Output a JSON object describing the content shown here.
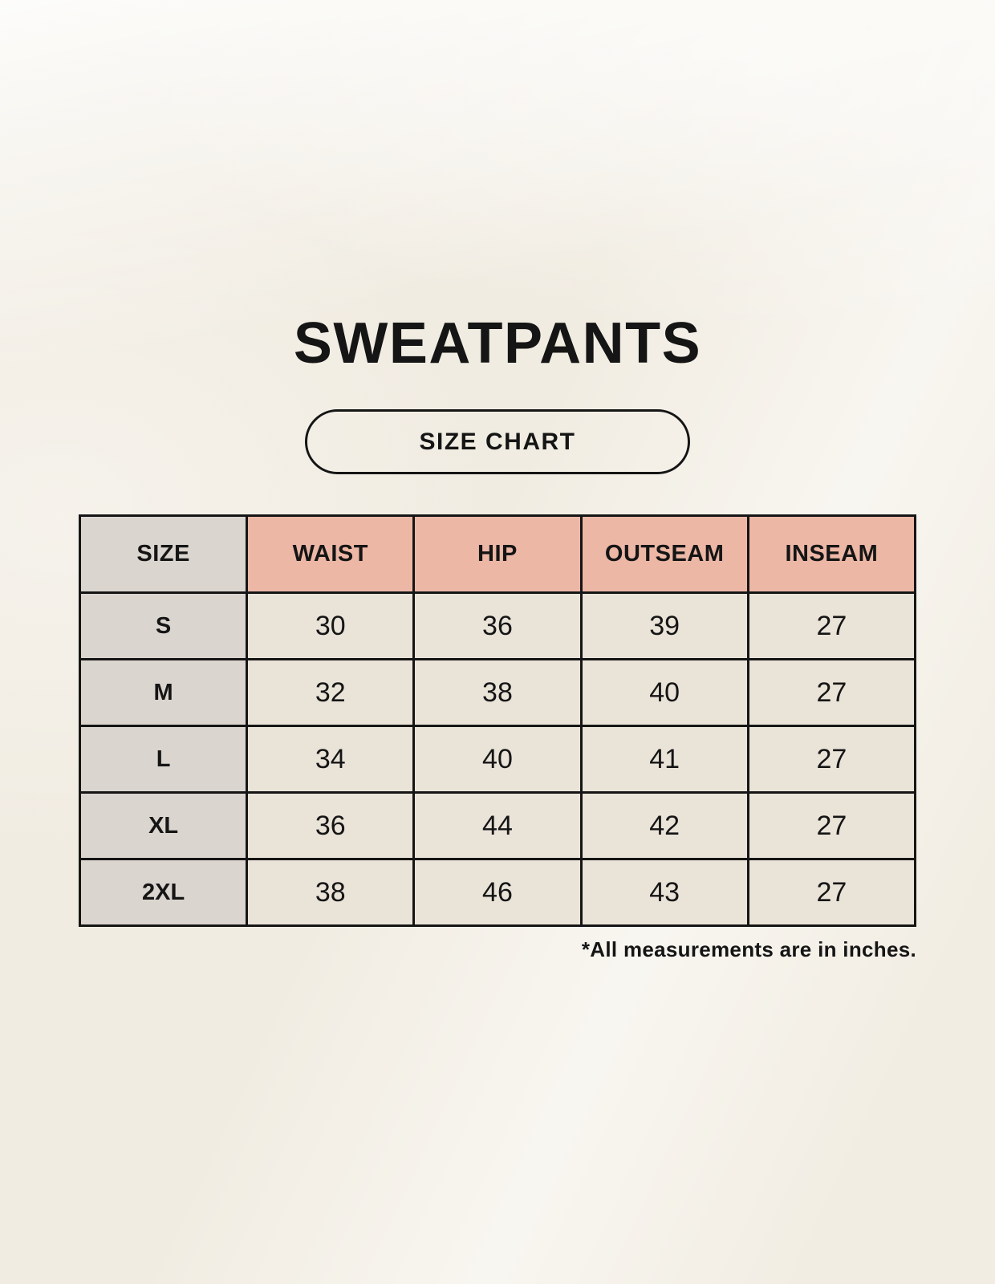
{
  "title": "SWEATPANTS",
  "button_label": "SIZE CHART",
  "footnote": "*All measurements are in inches.",
  "chart_data": {
    "type": "table",
    "title": "SWEATPANTS",
    "subtitle": "SIZE CHART",
    "units": "inches",
    "columns": [
      "SIZE",
      "WAIST",
      "HIP",
      "OUTSEAM",
      "INSEAM"
    ],
    "rows": [
      [
        "S",
        30,
        36,
        39,
        27
      ],
      [
        "M",
        32,
        38,
        40,
        27
      ],
      [
        "L",
        34,
        40,
        41,
        27
      ],
      [
        "XL",
        36,
        44,
        42,
        27
      ],
      [
        "2XL",
        38,
        46,
        43,
        27
      ]
    ],
    "note": "*All measurements are in inches."
  },
  "colors": {
    "background": "#f4f0e7",
    "header_accent": "#edb7a6",
    "size_column": "#dbd5cf",
    "cell": "#eae3d8",
    "border": "#151515",
    "text": "#151515"
  }
}
